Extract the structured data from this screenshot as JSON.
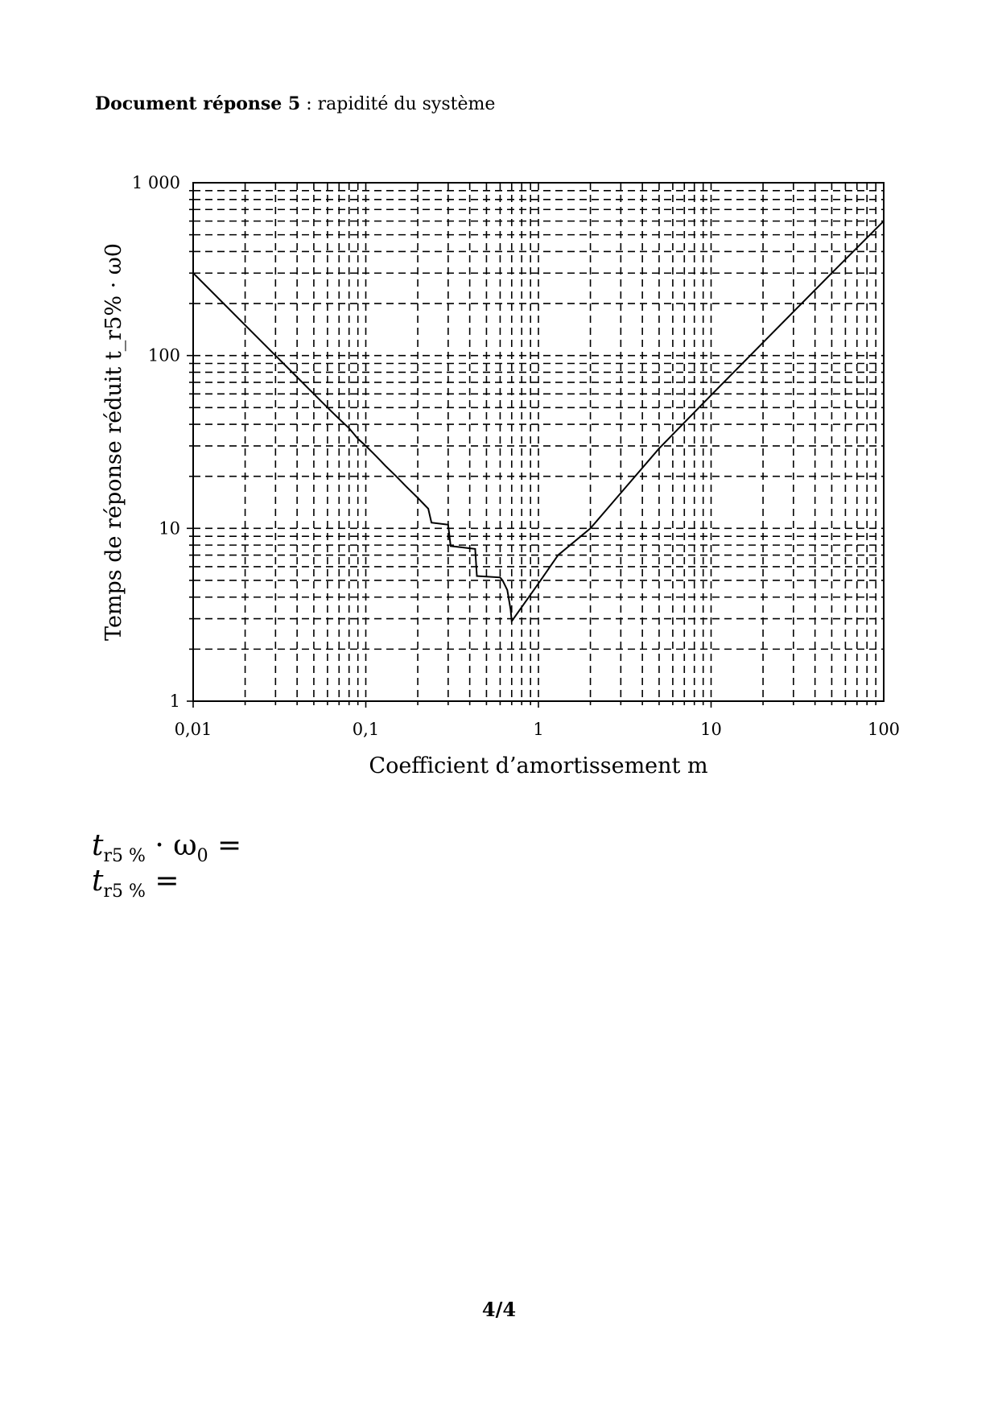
{
  "header": {
    "bold_part": "Document réponse 5",
    "rest": " : rapidité du système"
  },
  "chart_data": {
    "type": "line",
    "x_scale": "log",
    "y_scale": "log",
    "xlim": [
      0.01,
      100
    ],
    "ylim": [
      1,
      1000
    ],
    "grid": true,
    "grid_style": "dashed",
    "xlabel": "Coefficient d’amortissement m",
    "ylabel": "Temps de réponse réduit t_r5% · ω0",
    "x_ticks": [
      0.01,
      0.1,
      1,
      10,
      100
    ],
    "x_tick_labels": [
      "0,01",
      "0,1",
      "1",
      "10",
      "100"
    ],
    "y_ticks": [
      1,
      10,
      100,
      1000
    ],
    "y_tick_labels": [
      "1",
      "10",
      "100",
      "1 000"
    ],
    "series": [
      {
        "x": [
          0.01,
          0.02,
          0.03,
          0.04,
          0.05,
          0.06,
          0.07,
          0.08,
          0.09,
          0.1,
          0.11,
          0.12,
          0.13,
          0.15,
          0.17,
          0.2,
          0.23,
          0.24,
          0.3,
          0.31,
          0.43,
          0.44,
          0.6,
          0.62,
          0.66,
          0.69,
          0.7,
          1.0,
          1.3,
          2.0,
          5.0,
          10.0,
          20.0,
          50.0,
          100.0
        ],
        "y": [
          300,
          150,
          100,
          75,
          60,
          50,
          43,
          38,
          33,
          30,
          27.3,
          25,
          23,
          20,
          17.6,
          15,
          13,
          10.8,
          10.5,
          7.9,
          7.6,
          5.3,
          5.2,
          5.0,
          4.4,
          3.4,
          2.9,
          4.8,
          7.0,
          10.0,
          29,
          59,
          119,
          300,
          600
        ]
      }
    ]
  },
  "answers": {
    "line1_symbol": "t",
    "line1_sub": "r5 %",
    "line1_tail": " · ω",
    "line1_sub2": "0",
    "line1_eq": " =",
    "line2_symbol": "t",
    "line2_sub": "r5 %",
    "line2_eq": " ="
  },
  "footer": {
    "page_number": "4/4"
  }
}
